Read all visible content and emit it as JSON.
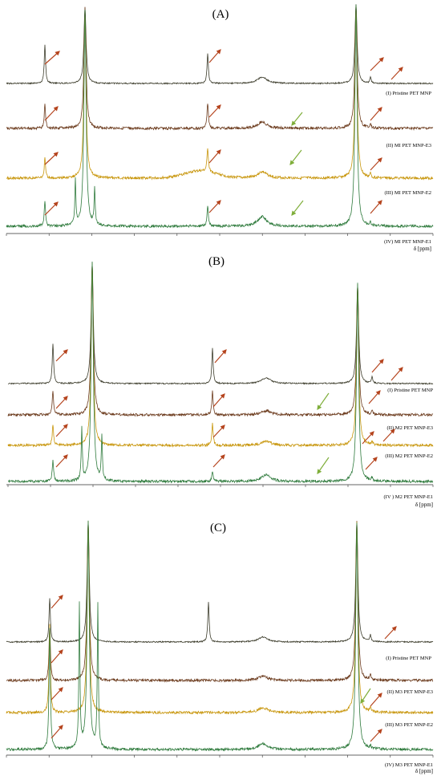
{
  "figure": {
    "panels": [
      {
        "label": "(A)",
        "axis_label": "δ [ppm]",
        "spectra": [
          {
            "label": "(I) Pristine PET MNP",
            "color": "#3b3b2a"
          },
          {
            "label": "(II) MI PET MNP-E3",
            "color": "#6b3a1c"
          },
          {
            "label": "(III) MI PET MNP-E2",
            "color": "#c8960c"
          },
          {
            "label": "(IV) MI PET MNP-E1",
            "color": "#2e7a3c"
          }
        ]
      },
      {
        "label": "(B)",
        "axis_label": "δ [ppm]",
        "spectra": [
          {
            "label": "(I) Pristine PET MNP",
            "color": "#3b3b2a"
          },
          {
            "label": "(II) M2 PET MNP-E3",
            "color": "#6b3a1c"
          },
          {
            "label": "(III) M2 PET MNP-E2",
            "color": "#c8960c"
          },
          {
            "label": "(IV ) M2 PET MNP-E1",
            "color": "#2e7a3c"
          }
        ]
      },
      {
        "label": "(C)",
        "axis_label": "δ [ppm]",
        "spectra": [
          {
            "label": "(I) Pristine PET MNP",
            "color": "#3b3b2a"
          },
          {
            "label": "(II) M3 PET MNP-E3",
            "color": "#6b3a1c"
          },
          {
            "label": "(III) M3 PET MNP-E2",
            "color": "#c8960c"
          },
          {
            "label": "(IV) M3 PET MNP-E1",
            "color": "#2e7a3c"
          }
        ]
      }
    ],
    "arrow_colors": {
      "peak_change": "#b5441e",
      "new_peak": "#7fae3a"
    }
  },
  "chart_data": [
    {
      "type": "line",
      "title": "(A)",
      "xlabel": "δ [ppm]",
      "ylabel": "",
      "series": [
        {
          "name": "(I) Pristine PET MNP"
        },
        {
          "name": "(II) MI PET MNP-E3"
        },
        {
          "name": "(III) MI PET MNP-E2"
        },
        {
          "name": "(IV) MI PET MNP-E1"
        }
      ]
    },
    {
      "type": "line",
      "title": "(B)",
      "xlabel": "δ [ppm]",
      "ylabel": "",
      "series": [
        {
          "name": "(I) Pristine PET MNP"
        },
        {
          "name": "(II) M2 PET MNP-E3"
        },
        {
          "name": "(III) M2 PET MNP-E2"
        },
        {
          "name": "(IV ) M2 PET MNP-E1"
        }
      ]
    },
    {
      "type": "line",
      "title": "(C)",
      "xlabel": "δ [ppm]",
      "ylabel": "",
      "series": [
        {
          "name": "(I) Pristine PET MNP"
        },
        {
          "name": "(II) M3 PET MNP-E3"
        },
        {
          "name": "(III) M3 PET MNP-E2"
        },
        {
          "name": "(IV) M3 PET MNP-E1"
        }
      ]
    }
  ]
}
